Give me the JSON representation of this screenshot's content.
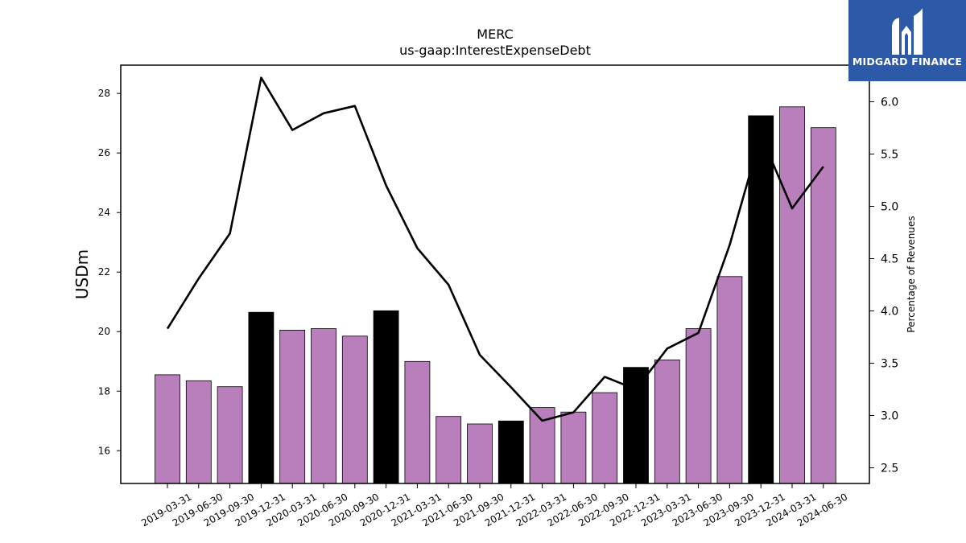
{
  "chart_data": {
    "type": "bar",
    "title": "MERC",
    "subtitle": "us-gaap:InterestExpenseDebt",
    "ylabel": "USDm",
    "y2label": "Percentage of Revenues",
    "ylim": [
      14.9,
      28.95
    ],
    "y2lim": [
      2.35,
      6.35
    ],
    "yticks": [
      16,
      18,
      20,
      22,
      24,
      26,
      28
    ],
    "y2ticks": [
      2.5,
      3.0,
      3.5,
      4.0,
      4.5,
      5.0,
      5.5,
      6.0
    ],
    "y2tick_labels": [
      "2.5",
      "3.0",
      "3.5",
      "4.0",
      "4.5",
      "5.0",
      "5.5",
      "6.0"
    ],
    "categories": [
      "2019-03-31",
      "2019-06-30",
      "2019-09-30",
      "2019-12-31",
      "2020-03-31",
      "2020-06-30",
      "2020-09-30",
      "2020-12-31",
      "2021-03-31",
      "2021-06-30",
      "2021-09-30",
      "2021-12-31",
      "2022-03-31",
      "2022-06-30",
      "2022-09-30",
      "2022-12-31",
      "2023-03-31",
      "2023-06-30",
      "2023-09-30",
      "2023-12-31",
      "2024-03-31",
      "2024-06-30"
    ],
    "series": [
      {
        "kind": "bar",
        "axis": "left",
        "values": [
          18.55,
          18.35,
          18.15,
          20.65,
          20.05,
          20.1,
          19.85,
          20.7,
          19.0,
          17.15,
          16.9,
          17.0,
          17.45,
          17.3,
          17.95,
          18.8,
          19.05,
          20.1,
          21.85,
          27.25,
          27.55,
          26.85
        ],
        "colors": [
          "#b97fbc",
          "#b97fbc",
          "#b97fbc",
          "#000000",
          "#b97fbc",
          "#b97fbc",
          "#b97fbc",
          "#000000",
          "#b97fbc",
          "#b97fbc",
          "#b97fbc",
          "#000000",
          "#b97fbc",
          "#b97fbc",
          "#b97fbc",
          "#000000",
          "#b97fbc",
          "#b97fbc",
          "#b97fbc",
          "#000000",
          "#b97fbc",
          "#b97fbc"
        ]
      },
      {
        "kind": "line",
        "axis": "right",
        "color": "#000000",
        "values": [
          3.83,
          4.31,
          4.74,
          6.23,
          5.73,
          5.89,
          5.96,
          5.2,
          4.6,
          4.25,
          3.58,
          3.27,
          2.95,
          3.03,
          3.37,
          3.25,
          3.64,
          3.79,
          4.63,
          5.68,
          4.98,
          5.38
        ]
      }
    ],
    "grid": false,
    "legend": "none"
  },
  "logo": {
    "text": "MIDGARD FINANCE"
  },
  "colors": {
    "bar": "#b97fbc",
    "highlight_bar": "#000000",
    "line": "#000000",
    "logo_bg": "#2c5aa8"
  }
}
